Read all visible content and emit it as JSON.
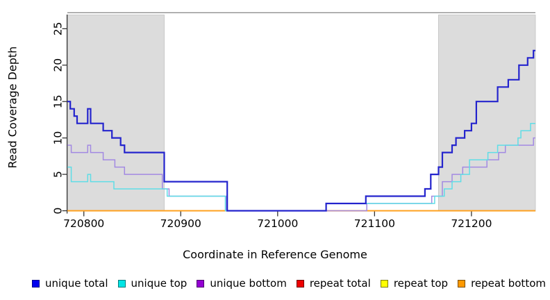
{
  "chart_data": {
    "type": "line",
    "subtype": "step-after",
    "title": "",
    "xlabel": "Coordinate in Reference Genome",
    "ylabel": "Read Coverage Depth",
    "xlim": [
      720783,
      721266
    ],
    "ylim": [
      0,
      27.2
    ],
    "x_ticks": [
      720800,
      720900,
      721000,
      721100,
      721200
    ],
    "y_ticks": [
      0,
      5,
      10,
      15,
      20,
      25
    ],
    "grid": false,
    "shade_color": "#dcdcdc",
    "shade_border": "#c2c2c2",
    "top_border_color": "#8f8f8f",
    "axis_color": "#333333",
    "shaded_regions": [
      [
        720783,
        720883
      ],
      [
        721166,
        721266
      ]
    ],
    "legend_position": "bottom",
    "draw_order": [
      3,
      4,
      5,
      2,
      1,
      0
    ],
    "series": [
      {
        "name": "unique total",
        "line_color": "#2424cd",
        "swatch_color": "#0000ee",
        "swatch_border": "#00008b",
        "line_width": 2.2,
        "steps": [
          [
            720783,
            15
          ],
          [
            720786,
            14
          ],
          [
            720790,
            13
          ],
          [
            720793,
            12
          ],
          [
            720804,
            14
          ],
          [
            720807,
            12
          ],
          [
            720820,
            11
          ],
          [
            720829,
            10
          ],
          [
            720838,
            9
          ],
          [
            720842,
            8
          ],
          [
            720883,
            4
          ],
          [
            720948,
            0
          ],
          [
            721050,
            1
          ],
          [
            721091,
            2
          ],
          [
            721152,
            3
          ],
          [
            721158,
            5
          ],
          [
            721166,
            6
          ],
          [
            721170,
            8
          ],
          [
            721180,
            9
          ],
          [
            721184,
            10
          ],
          [
            721193,
            11
          ],
          [
            721200,
            12
          ],
          [
            721205,
            15
          ],
          [
            721227,
            17
          ],
          [
            721238,
            18
          ],
          [
            721249,
            20
          ],
          [
            721258,
            21
          ],
          [
            721264,
            22
          ]
        ]
      },
      {
        "name": "unique top",
        "line_color": "#5fdde6",
        "swatch_color": "#00e5e5",
        "swatch_border": "#007a7a",
        "line_width": 1.5,
        "steps": [
          [
            720783,
            6
          ],
          [
            720787,
            4
          ],
          [
            720804,
            5
          ],
          [
            720807,
            4
          ],
          [
            720831,
            3
          ],
          [
            720886,
            2
          ],
          [
            720946,
            0
          ],
          [
            721050,
            1
          ],
          [
            721162,
            2
          ],
          [
            721172,
            3
          ],
          [
            721180,
            4
          ],
          [
            721189,
            5
          ],
          [
            721198,
            7
          ],
          [
            721217,
            8
          ],
          [
            721227,
            9
          ],
          [
            721248,
            10
          ],
          [
            721251,
            11
          ],
          [
            721261,
            12
          ]
        ]
      },
      {
        "name": "unique bottom",
        "line_color": "#a289e2",
        "swatch_color": "#9400d3",
        "swatch_border": "#4d006e",
        "line_width": 1.5,
        "steps": [
          [
            720783,
            9
          ],
          [
            720787,
            8
          ],
          [
            720804,
            9
          ],
          [
            720807,
            8
          ],
          [
            720820,
            7
          ],
          [
            720832,
            6
          ],
          [
            720842,
            5
          ],
          [
            720881,
            3
          ],
          [
            720888,
            2
          ],
          [
            720947,
            0
          ],
          [
            721092,
            1
          ],
          [
            721159,
            2
          ],
          [
            721170,
            4
          ],
          [
            721180,
            5
          ],
          [
            721191,
            6
          ],
          [
            721216,
            7
          ],
          [
            721228,
            8
          ],
          [
            721235,
            9
          ],
          [
            721264,
            10
          ]
        ]
      },
      {
        "name": "repeat total",
        "line_color": "#dd2222",
        "swatch_color": "#ee0000",
        "swatch_border": "#6e0000",
        "line_width": 1.5,
        "steps": [
          [
            720783,
            0
          ]
        ]
      },
      {
        "name": "repeat top",
        "line_color": "#eeee22",
        "swatch_color": "#ffff00",
        "swatch_border": "#7a7a00",
        "line_width": 1.5,
        "steps": [
          [
            720783,
            0
          ]
        ]
      },
      {
        "name": "repeat bottom",
        "line_color": "#ffa11f",
        "swatch_color": "#ff9900",
        "swatch_border": "#7a4e00",
        "line_width": 2,
        "steps": [
          [
            720783,
            0
          ]
        ]
      }
    ]
  }
}
